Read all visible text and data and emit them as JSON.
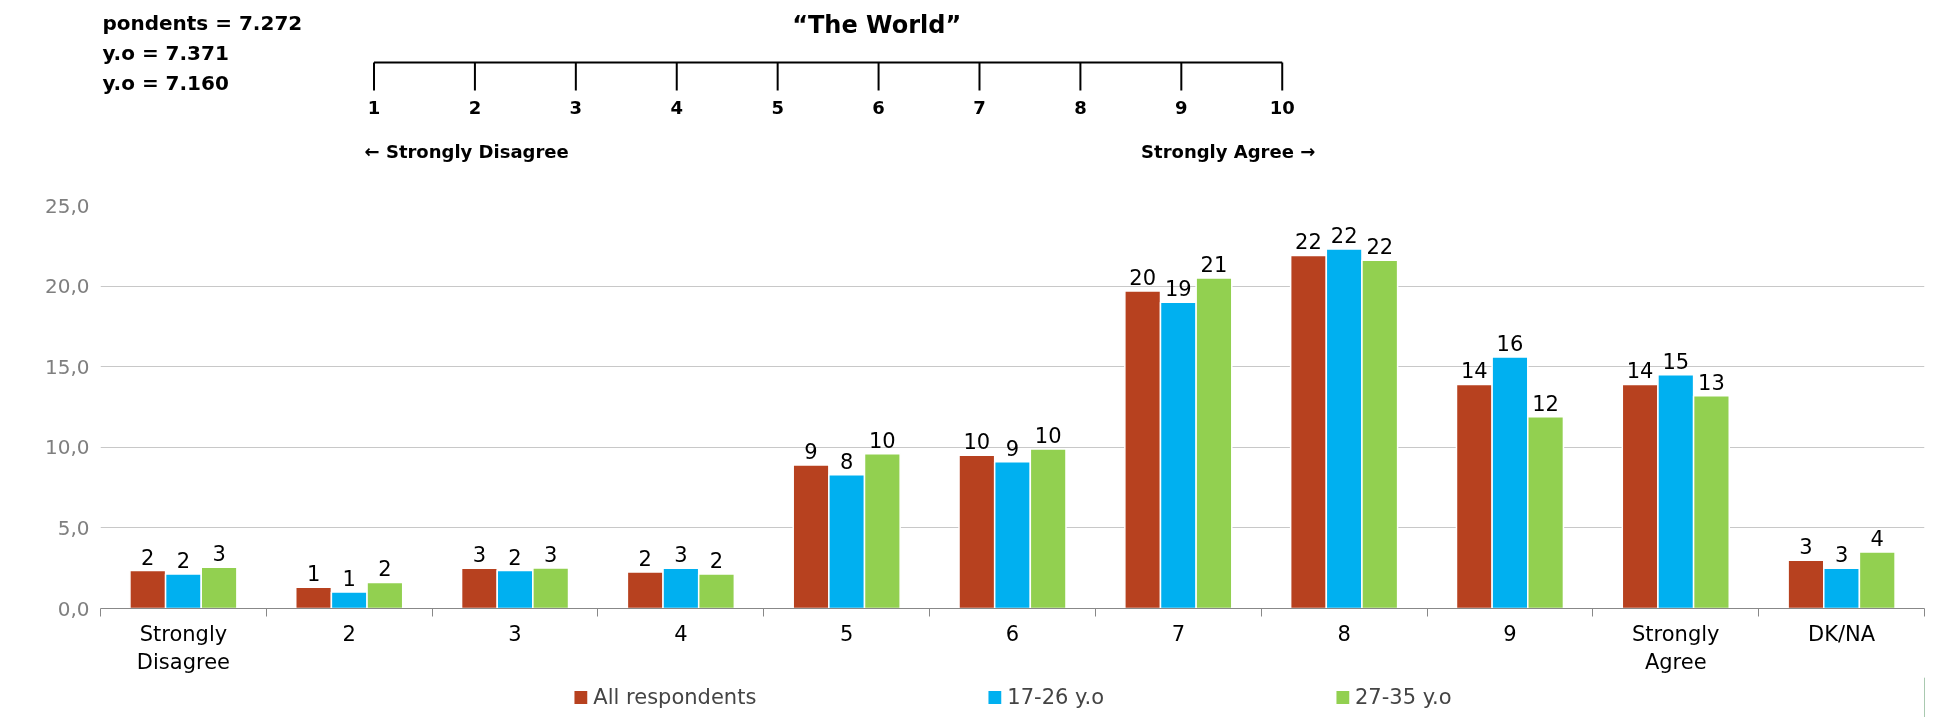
{
  "chart_data": {
    "type": "bar",
    "title": "“The World”",
    "annotations": [
      "pondents = 7.272",
      "y.o  = 7.371",
      "y.o  = 7.160",
      "1",
      "2",
      "3",
      "4",
      "5",
      "6",
      "7",
      "8",
      "9",
      "10",
      "← Strongly Disagree",
      "Strongly Agree →"
    ],
    "categories": [
      "Strongly Disagree",
      "2",
      "3",
      "4",
      "5",
      "6",
      "7",
      "8",
      "9",
      "Strongly Agree",
      "DK/NA"
    ],
    "series": [
      {
        "name": "All respondents",
        "color": "#b7411f",
        "values": [
          2.35,
          1.32,
          2.5,
          2.26,
          8.9,
          9.5,
          19.7,
          21.9,
          13.9,
          13.9,
          3.0
        ],
        "value_labels": [
          "2",
          "1",
          "3",
          "2",
          "9",
          "10",
          "20",
          "22",
          "14",
          "14",
          "3"
        ]
      },
      {
        "name": "17-26 y.o",
        "color": "#00b0f0",
        "values": [
          2.14,
          1.03,
          2.35,
          2.5,
          8.3,
          9.1,
          19.0,
          22.3,
          15.6,
          14.5,
          2.5
        ],
        "value_labels": [
          "2",
          "1",
          "2",
          "3",
          "8",
          "9",
          "19",
          "22",
          "16",
          "15",
          "3"
        ]
      },
      {
        "name": "27-35 y.o",
        "color": "#92d050",
        "values": [
          2.56,
          1.62,
          2.52,
          2.14,
          9.6,
          9.9,
          20.5,
          21.6,
          11.9,
          13.2,
          3.5
        ],
        "value_labels": [
          "3",
          "2",
          "3",
          "2",
          "10",
          "10",
          "21",
          "22",
          "12",
          "13",
          "4"
        ]
      }
    ],
    "ylim": [
      0,
      25
    ],
    "yticks": [
      {
        "value": 0,
        "label": "0,0"
      },
      {
        "value": 5,
        "label": "5,0"
      },
      {
        "value": 10,
        "label": "10,0"
      },
      {
        "value": 15,
        "label": "15,0"
      },
      {
        "value": 20,
        "label": "20,0"
      },
      {
        "value": 25,
        "label": "25,0"
      }
    ],
    "grid": "y",
    "legend": "bottom"
  }
}
